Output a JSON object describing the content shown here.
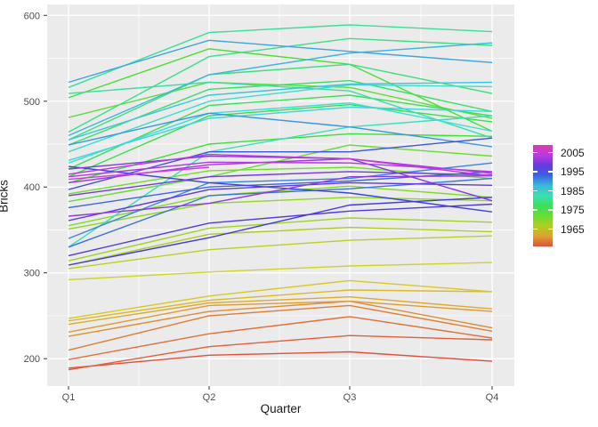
{
  "figure": {
    "type": "season-plot",
    "background": "#FFFFFF"
  },
  "colors": {
    "panel_bg": "#EBEBEB",
    "grid_major": "#FFFFFF",
    "grid_minor": "#FFFFFF",
    "axis_text": "#4D4D4D",
    "axis_title": "#1A1A1A",
    "tick_mark": "#333333"
  },
  "chart_data": {
    "type": "line",
    "title": "",
    "xlabel": "Quarter",
    "ylabel": "Bricks",
    "categories": [
      "Q1",
      "Q2",
      "Q3",
      "Q4"
    ],
    "yticks": [
      200,
      300,
      400,
      500,
      600
    ],
    "ylim": [
      168,
      612
    ],
    "grid": "on",
    "legend": {
      "position": "right",
      "style": "colorbar",
      "tick_labels": [
        "2005",
        "1995",
        "1985",
        "1975",
        "1965"
      ],
      "tick_years": [
        2005,
        1995,
        1985,
        1975,
        1965
      ],
      "year_domain": [
        1956,
        2009
      ],
      "gradient_top_to_bottom": [
        "magenta-pink",
        "purple",
        "blue",
        "cyan",
        "teal",
        "green",
        "olive",
        "gold",
        "orange",
        "salmon"
      ]
    },
    "series": [
      {
        "year": 1956,
        "values": [
          189,
          204,
          208,
          197
        ]
      },
      {
        "year": 1957,
        "values": [
          187,
          214,
          227,
          222
        ]
      },
      {
        "year": 1958,
        "values": [
          199,
          229,
          249,
          224
        ]
      },
      {
        "year": 1959,
        "values": [
          210,
          250,
          262,
          232
        ]
      },
      {
        "year": 1960,
        "values": [
          226,
          255,
          267,
          236
        ]
      },
      {
        "year": 1961,
        "values": [
          231,
          262,
          267,
          255
        ]
      },
      {
        "year": 1962,
        "values": [
          240,
          265,
          272,
          258
        ]
      },
      {
        "year": 1963,
        "values": [
          244,
          268,
          280,
          278
        ]
      },
      {
        "year": 1964,
        "values": [
          247,
          273,
          291,
          278
        ]
      },
      {
        "year": 1965,
        "values": [
          292,
          301,
          308,
          312
        ]
      },
      {
        "year": 1966,
        "values": [
          305,
          327,
          338,
          343
        ]
      },
      {
        "year": 1967,
        "values": [
          309,
          345,
          353,
          348
        ]
      },
      {
        "year": 1968,
        "values": [
          314,
          352,
          364,
          359
        ]
      },
      {
        "year": 1969,
        "values": [
          351,
          381,
          388,
          384
        ]
      },
      {
        "year": 1970,
        "values": [
          355,
          390,
          401,
          388
        ]
      },
      {
        "year": 1971,
        "values": [
          392,
          419,
          423,
          410
        ]
      },
      {
        "year": 1972,
        "values": [
          383,
          412,
          449,
          436
        ]
      },
      {
        "year": 1973,
        "values": [
          481,
          522,
          516,
          480
        ]
      },
      {
        "year": 1974,
        "values": [
          504,
          561,
          543,
          465
        ]
      },
      {
        "year": 1975,
        "values": [
          405,
          450,
          462,
          459
        ]
      },
      {
        "year": 1976,
        "values": [
          412,
          483,
          496,
          476
        ]
      },
      {
        "year": 1977,
        "values": [
          421,
          495,
          507,
          483
        ]
      },
      {
        "year": 1978,
        "values": [
          449,
          514,
          524,
          488
        ]
      },
      {
        "year": 1979,
        "values": [
          455,
          531,
          543,
          509
        ]
      },
      {
        "year": 1980,
        "values": [
          464,
          552,
          573,
          565
        ]
      },
      {
        "year": 1981,
        "values": [
          516,
          580,
          589,
          581
        ]
      },
      {
        "year": 1982,
        "values": [
          509,
          522,
          512,
          457
        ]
      },
      {
        "year": 1983,
        "values": [
          330,
          441,
          470,
          483
        ]
      },
      {
        "year": 1984,
        "values": [
          441,
          500,
          519,
          517
        ]
      },
      {
        "year": 1985,
        "values": [
          428,
          486,
          498,
          465
        ]
      },
      {
        "year": 1986,
        "values": [
          431,
          480,
          493,
          488
        ]
      },
      {
        "year": 1987,
        "values": [
          455,
          507,
          520,
          522
        ]
      },
      {
        "year": 1988,
        "values": [
          460,
          531,
          556,
          568
        ]
      },
      {
        "year": 1989,
        "values": [
          522,
          571,
          558,
          545
        ]
      },
      {
        "year": 1990,
        "values": [
          449,
          486,
          470,
          447
        ]
      },
      {
        "year": 1991,
        "values": [
          340,
          405,
          410,
          428
        ]
      },
      {
        "year": 1992,
        "values": [
          330,
          390,
          398,
          410
        ]
      },
      {
        "year": 1993,
        "values": [
          376,
          400,
          407,
          418
        ]
      },
      {
        "year": 1994,
        "values": [
          397,
          441,
          441,
          457
        ]
      },
      {
        "year": 1995,
        "values": [
          424,
          405,
          393,
          371
        ]
      },
      {
        "year": 1996,
        "values": [
          309,
          341,
          379,
          388
        ]
      },
      {
        "year": 1997,
        "values": [
          320,
          358,
          372,
          380
        ]
      },
      {
        "year": 1998,
        "values": [
          361,
          397,
          405,
          402
        ]
      },
      {
        "year": 1999,
        "values": [
          390,
          412,
          418,
          414
        ]
      },
      {
        "year": 2000,
        "values": [
          421,
          436,
          433,
          384
        ]
      },
      {
        "year": 2001,
        "values": [
          366,
          381,
          412,
          413
        ]
      },
      {
        "year": 2002,
        "values": [
          405,
          426,
          433,
          416
        ]
      },
      {
        "year": 2003,
        "values": [
          412,
          429,
          428,
          418
        ]
      },
      {
        "year": 2004,
        "values": [
          415,
          438,
          433,
          413
        ]
      },
      {
        "year": 2005,
        "values": [
          409,
          423,
          null,
          null
        ]
      }
    ]
  }
}
